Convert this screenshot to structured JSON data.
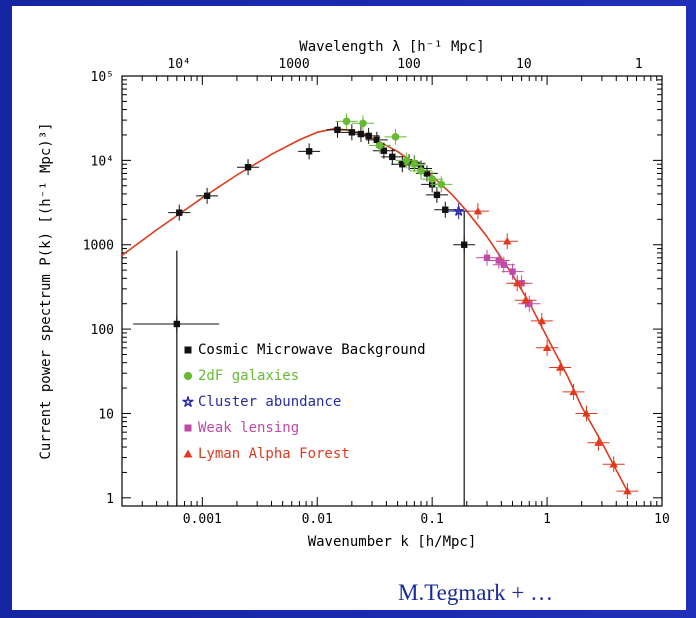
{
  "colors": {
    "background": "#1a2aa6",
    "panel": "#ffffff",
    "curve": "#e03a1e",
    "cmb": "#111111",
    "galaxies": "#66bb33",
    "cluster": "#2a2aa8",
    "lensing": "#c04aa6",
    "lyman": "#e03a1e",
    "credit": "#1a2a9a"
  },
  "credit": "M.Tegmark + …",
  "chart_data": {
    "type": "scatter",
    "title": "",
    "xlabel": "Wavenumber k [h/Mpc]",
    "ylabel": "Current power spectrum P(k) [(h⁻¹ Mpc)³]",
    "x2label": "Wavelength λ [h⁻¹ Mpc]",
    "xscale": "log",
    "yscale": "log",
    "xlim": [
      0.0002,
      10
    ],
    "ylim": [
      0.8,
      100000
    ],
    "x_ticks": [
      0.001,
      0.01,
      0.1,
      1,
      10
    ],
    "x_tick_labels": [
      "0.001",
      "0.01",
      "0.1",
      "1",
      "10"
    ],
    "y_ticks": [
      1,
      10,
      100,
      1000,
      10000,
      100000
    ],
    "y_tick_labels": [
      "1",
      "10",
      "100",
      "1000",
      "10⁴",
      "10⁵"
    ],
    "x2_ticks": [
      10000,
      1000,
      100,
      10,
      1
    ],
    "x2_tick_labels": [
      "10⁴",
      "1000",
      "100",
      "10",
      "1"
    ],
    "legend_position": "bottom-left",
    "grid": false,
    "model_curve": {
      "x": [
        0.0002,
        0.0004,
        0.0007,
        0.001,
        0.002,
        0.004,
        0.007,
        0.01,
        0.014,
        0.02,
        0.03,
        0.05,
        0.07,
        0.1,
        0.15,
        0.2,
        0.3,
        0.5,
        0.7,
        1,
        1.5,
        2,
        3,
        5
      ],
      "y": [
        750,
        1500,
        2550,
        3600,
        6700,
        11800,
        17500,
        21500,
        23700,
        22600,
        18500,
        12700,
        9200,
        6500,
        3900,
        2500,
        1250,
        440,
        205,
        80,
        28,
        12,
        4.5,
        1.2
      ]
    },
    "series": [
      {
        "name": "Cosmic Microwave Background",
        "marker": "square",
        "x": [
          0.0006,
          0.00063,
          0.0011,
          0.0025,
          0.0085,
          0.015,
          0.02,
          0.024,
          0.028,
          0.033,
          0.038,
          0.045,
          0.055,
          0.063,
          0.07,
          0.08,
          0.09,
          0.1,
          0.11,
          0.13,
          0.19
        ],
        "y": [
          115,
          2400,
          3800,
          8300,
          12800,
          23000,
          21500,
          20500,
          19500,
          17500,
          13000,
          11000,
          9000,
          9500,
          9200,
          8000,
          7000,
          5200,
          3900,
          2600,
          1000
        ]
      },
      {
        "name": "2dF galaxies",
        "marker": "circle",
        "x": [
          0.018,
          0.025,
          0.035,
          0.048,
          0.06,
          0.07,
          0.08,
          0.1,
          0.12
        ],
        "y": [
          29000,
          27500,
          15000,
          19000,
          10000,
          9000,
          7500,
          6000,
          5200
        ]
      },
      {
        "name": "Cluster abundance",
        "marker": "star",
        "x": [
          0.17
        ],
        "y": [
          2500
        ]
      },
      {
        "name": "Weak lensing",
        "marker": "square",
        "x": [
          0.3,
          0.38,
          0.42,
          0.5,
          0.6,
          0.7
        ],
        "y": [
          700,
          650,
          580,
          480,
          350,
          200
        ]
      },
      {
        "name": "Lyman Alpha Forest",
        "marker": "triangle",
        "x": [
          0.25,
          0.45,
          0.55,
          0.65,
          0.9,
          1.0,
          1.3,
          1.7,
          2.2,
          2.8,
          3.8,
          5.0
        ],
        "y": [
          2500,
          1100,
          350,
          220,
          125,
          60,
          35,
          18,
          10,
          4.5,
          2.5,
          1.2
        ]
      }
    ]
  }
}
